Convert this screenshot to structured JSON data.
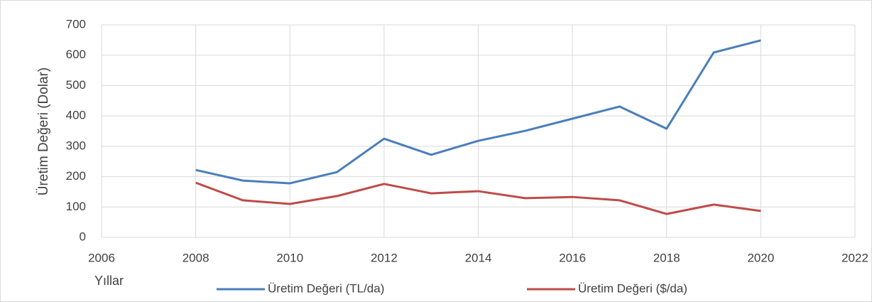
{
  "chart_data": {
    "type": "line",
    "x_label": "Yıllar",
    "y_label": "Üretim Değeri (Dolar)",
    "x": [
      2008,
      2009,
      2010,
      2011,
      2012,
      2013,
      2014,
      2015,
      2016,
      2017,
      2018,
      2019,
      2020
    ],
    "series": [
      {
        "name": "Üretim Değeri (TL/da)",
        "color": "#4a7ebb",
        "values": [
          222,
          187,
          178,
          215,
          325,
          272,
          318,
          351,
          391,
          431,
          358,
          609,
          649
        ]
      },
      {
        "name": "Üretim Değeri ($/da)",
        "color": "#be4b48",
        "values": [
          180,
          122,
          110,
          136,
          176,
          145,
          152,
          129,
          133,
          122,
          77,
          108,
          87
        ]
      }
    ],
    "xlim": [
      2006,
      2022
    ],
    "xticks": [
      2006,
      2008,
      2010,
      2012,
      2014,
      2016,
      2018,
      2020,
      2022
    ],
    "ylim": [
      0,
      700
    ],
    "yticks": [
      0,
      100,
      200,
      300,
      400,
      500,
      600,
      700
    ],
    "grid": true,
    "legend": "bottom"
  }
}
